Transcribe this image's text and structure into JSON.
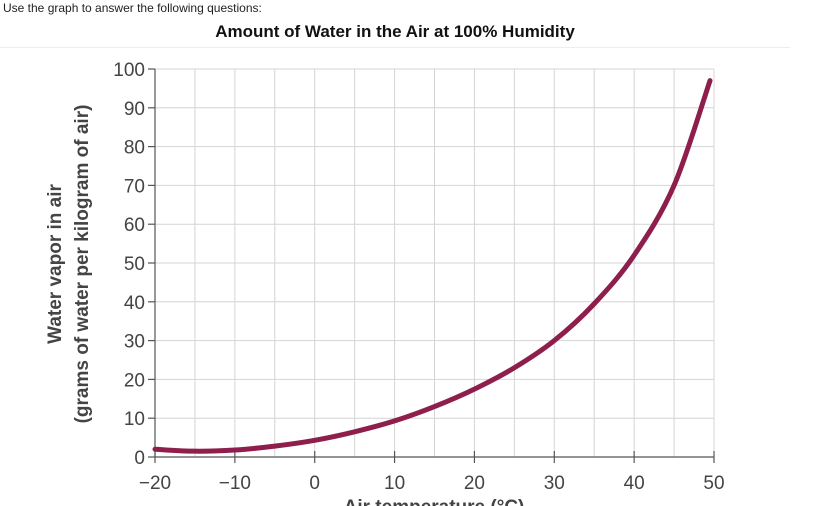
{
  "page": {
    "instruction": "Use the graph to answer the following questions:"
  },
  "chart_data": {
    "type": "line",
    "title": "Amount of Water in the Air at 100% Humidity",
    "ylabel_line1": "Water vapor in air",
    "ylabel_line2": "(grams of water per kilogram of air)",
    "xlabel": "Air temperature (°C)",
    "xlim": [
      -20,
      50
    ],
    "ylim": [
      0,
      100
    ],
    "x_ticks": [
      -20,
      -10,
      0,
      10,
      20,
      30,
      40,
      50
    ],
    "x_tick_labels": [
      "−20",
      "−10",
      "0",
      "10",
      "20",
      "30",
      "40",
      "50"
    ],
    "y_ticks": [
      0,
      10,
      20,
      30,
      40,
      50,
      60,
      70,
      80,
      90,
      100
    ],
    "y_tick_labels": [
      "0",
      "10",
      "20",
      "30",
      "40",
      "50",
      "60",
      "70",
      "80",
      "90",
      "100"
    ],
    "grid": true,
    "line_color": "#8e1f4c",
    "series": [
      {
        "x": [
          -20,
          -15,
          -10,
          -5,
          0,
          5,
          10,
          15,
          20,
          25,
          30,
          35,
          40,
          45,
          49.5
        ],
        "y": [
          2,
          1.5,
          1.8,
          2.8,
          4.3,
          6.5,
          9.3,
          13,
          17.5,
          23,
          30,
          39.5,
          52,
          70,
          97
        ]
      }
    ]
  }
}
